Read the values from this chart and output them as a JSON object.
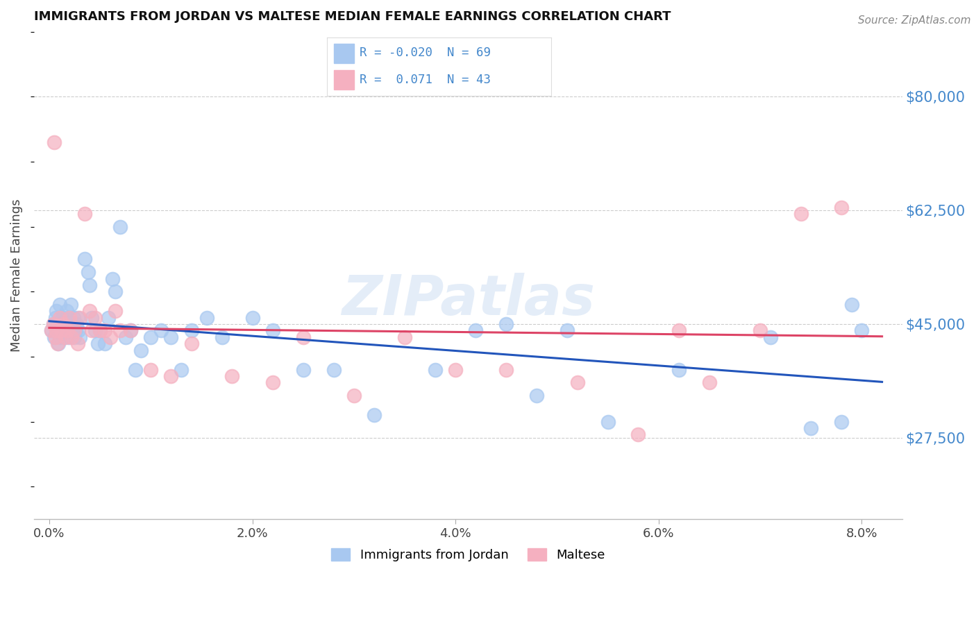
{
  "title": "IMMIGRANTS FROM JORDAN VS MALTESE MEDIAN FEMALE EARNINGS CORRELATION CHART",
  "source": "Source: ZipAtlas.com",
  "ylabel": "Median Female Earnings",
  "xlabel_ticks": [
    "0.0%",
    "2.0%",
    "4.0%",
    "6.0%",
    "8.0%"
  ],
  "xlabel_vals": [
    0.0,
    2.0,
    4.0,
    6.0,
    8.0
  ],
  "ytick_labels": [
    "$27,500",
    "$45,000",
    "$62,500",
    "$80,000"
  ],
  "ytick_vals": [
    27500,
    45000,
    62500,
    80000
  ],
  "ylim": [
    15000,
    90000
  ],
  "xlim": [
    -0.15,
    8.4
  ],
  "series1_label": "Immigrants from Jordan",
  "series1_color": "#a8c8f0",
  "series1_R": -0.02,
  "series1_N": 69,
  "series2_label": "Maltese",
  "series2_color": "#f5b0c0",
  "series2_R": 0.071,
  "series2_N": 43,
  "trend1_color": "#2255bb",
  "trend2_color": "#dd4466",
  "background_color": "#ffffff",
  "grid_color": "#cccccc",
  "title_color": "#111111",
  "axis_label_color": "#4488cc",
  "watermark": "ZIPatlas",
  "series1_x": [
    0.02,
    0.04,
    0.05,
    0.06,
    0.07,
    0.08,
    0.09,
    0.1,
    0.1,
    0.11,
    0.12,
    0.13,
    0.14,
    0.15,
    0.16,
    0.17,
    0.18,
    0.19,
    0.2,
    0.21,
    0.22,
    0.23,
    0.24,
    0.25,
    0.26,
    0.27,
    0.28,
    0.29,
    0.3,
    0.35,
    0.38,
    0.4,
    0.42,
    0.45,
    0.48,
    0.5,
    0.55,
    0.58,
    0.62,
    0.65,
    0.7,
    0.75,
    0.8,
    0.85,
    0.9,
    1.0,
    1.1,
    1.2,
    1.3,
    1.4,
    1.55,
    1.7,
    2.0,
    2.2,
    2.5,
    2.8,
    3.2,
    3.8,
    4.2,
    4.5,
    4.8,
    5.1,
    5.5,
    6.2,
    7.1,
    7.5,
    7.8,
    7.9,
    8.0
  ],
  "series1_y": [
    44000,
    45000,
    43000,
    46000,
    47000,
    44000,
    42000,
    48000,
    43000,
    45000,
    44000,
    46000,
    43000,
    45000,
    44000,
    47000,
    46000,
    43000,
    44000,
    48000,
    45000,
    44000,
    46000,
    43000,
    44000,
    45000,
    46000,
    44000,
    43000,
    55000,
    53000,
    51000,
    46000,
    44000,
    42000,
    44000,
    42000,
    46000,
    52000,
    50000,
    60000,
    43000,
    44000,
    38000,
    41000,
    43000,
    44000,
    43000,
    38000,
    44000,
    46000,
    43000,
    46000,
    44000,
    38000,
    38000,
    31000,
    38000,
    44000,
    45000,
    34000,
    44000,
    30000,
    38000,
    43000,
    29000,
    30000,
    48000,
    44000
  ],
  "series2_x": [
    0.02,
    0.04,
    0.05,
    0.06,
    0.07,
    0.08,
    0.1,
    0.12,
    0.14,
    0.16,
    0.18,
    0.2,
    0.22,
    0.25,
    0.28,
    0.3,
    0.35,
    0.4,
    0.42,
    0.45,
    0.5,
    0.55,
    0.6,
    0.65,
    0.7,
    0.8,
    1.0,
    1.2,
    1.4,
    1.8,
    2.2,
    2.5,
    3.0,
    3.5,
    4.0,
    4.5,
    5.2,
    5.8,
    6.2,
    6.5,
    7.0,
    7.4,
    7.8
  ],
  "series2_y": [
    44000,
    45000,
    73000,
    43000,
    44000,
    42000,
    46000,
    44000,
    45000,
    43000,
    44000,
    46000,
    43000,
    44000,
    42000,
    46000,
    62000,
    47000,
    44000,
    46000,
    44000,
    44000,
    43000,
    47000,
    44000,
    44000,
    38000,
    37000,
    42000,
    37000,
    36000,
    43000,
    34000,
    43000,
    38000,
    38000,
    36000,
    28000,
    44000,
    36000,
    44000,
    62000,
    63000
  ]
}
